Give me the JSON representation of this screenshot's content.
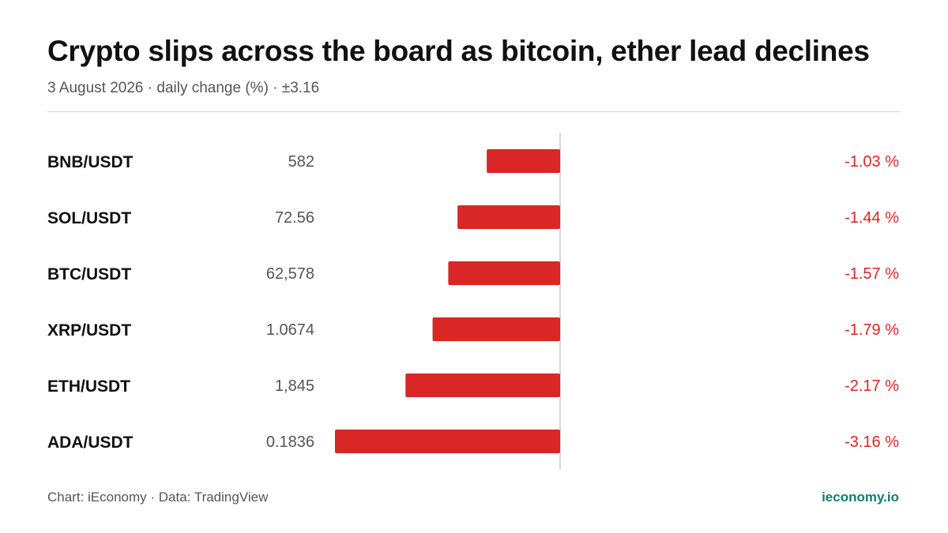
{
  "header": {
    "title": "Crypto slips across the board as bitcoin, ether lead declines",
    "subtitle": "3 August 2026 · daily change (%) · ±3.16"
  },
  "footer": {
    "source": "Chart: iEconomy · Data: TradingView",
    "brand": "ieconomy.io"
  },
  "colors": {
    "negative": "#d92626",
    "brand": "#0e7f6e",
    "axis": "#cccccc"
  },
  "chart_data": {
    "type": "bar",
    "orientation": "horizontal",
    "categories": [
      "BNB/USDT",
      "SOL/USDT",
      "BTC/USDT",
      "XRP/USDT",
      "ETH/USDT",
      "ADA/USDT"
    ],
    "prices": [
      "582",
      "72.56",
      "62,578",
      "1.0674",
      "1,845",
      "0.1836"
    ],
    "values": [
      -1.03,
      -1.44,
      -1.57,
      -1.79,
      -2.17,
      -3.16
    ],
    "value_labels": [
      "-1.03 %",
      "-1.44 %",
      "-1.57 %",
      "-1.79 %",
      "-2.17 %",
      "-3.16 %"
    ],
    "xlim": [
      -3.16,
      3.16
    ],
    "grid": false
  }
}
